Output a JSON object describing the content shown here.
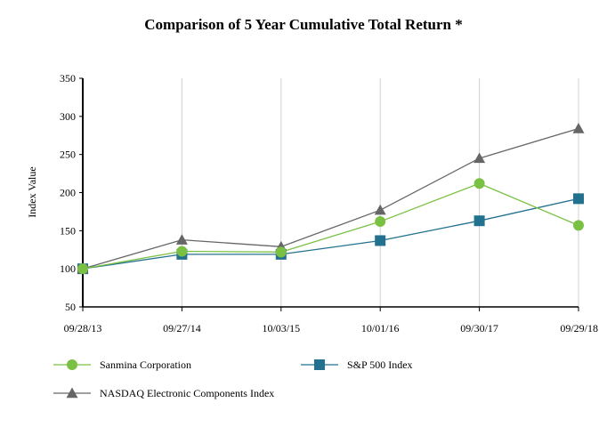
{
  "chart_data": {
    "type": "line",
    "title": "Comparison of 5 Year Cumulative Total Return *",
    "xlabel": "",
    "ylabel": "Index Value",
    "x": [
      "09/28/13",
      "09/27/14",
      "10/03/15",
      "10/01/16",
      "09/30/17",
      "09/29/18"
    ],
    "ylim": [
      50,
      350
    ],
    "yticks": [
      50,
      100,
      150,
      200,
      250,
      300,
      350
    ],
    "grid": "vertical",
    "legend_position": "bottom",
    "series": [
      {
        "name": "Sanmina Corporation",
        "marker": "circle",
        "color": "#7ac143",
        "values": [
          100,
          123,
          122,
          162,
          212,
          157
        ]
      },
      {
        "name": "S&P 500 Index",
        "marker": "square",
        "color": "#22718f",
        "values": [
          100,
          119,
          119,
          137,
          163,
          192
        ]
      },
      {
        "name": "NASDAQ Electronic Components Index",
        "marker": "triangle",
        "color": "#666666",
        "values": [
          100,
          138,
          129,
          177,
          245,
          284
        ]
      }
    ]
  }
}
